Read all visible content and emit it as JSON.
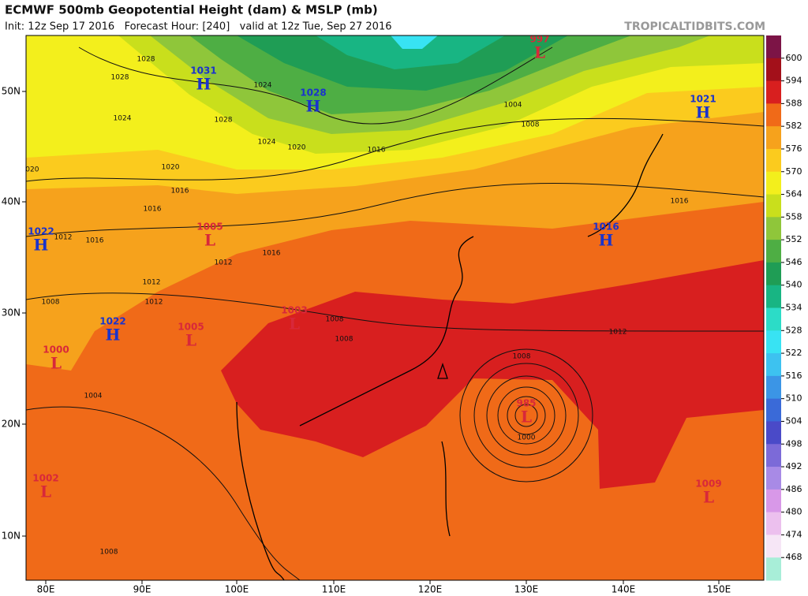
{
  "header": {
    "title": "ECMWF 500mb Geopotential Height (dam) & MSLP (mb)",
    "subtitle": "Init: 12z Sep 17 2016   Forecast Hour: [240]   valid at 12z Tue, Sep 27 2016",
    "site": "TROPICALTIDBITS.COM"
  },
  "lat_labels": [
    "50N",
    "40N",
    "30N",
    "20N",
    "10N"
  ],
  "lon_labels": [
    "80E",
    "90E",
    "100E",
    "110E",
    "120E",
    "130E",
    "140E",
    "150E"
  ],
  "colorbar": {
    "labels": [
      600,
      594,
      588,
      582,
      576,
      570,
      564,
      558,
      552,
      546,
      540,
      534,
      528,
      522,
      516,
      510,
      504,
      498,
      492,
      486,
      480,
      474,
      468
    ],
    "colors": [
      "#7c1446",
      "#a3101a",
      "#d81f1f",
      "#f06a18",
      "#f6a21c",
      "#fbcb1e",
      "#f3ef1c",
      "#c9df1c",
      "#8fc63a",
      "#4eae44",
      "#1f9d55",
      "#18b583",
      "#2cdcc7",
      "#38e3f3",
      "#3dc2f0",
      "#3b95e6",
      "#3a6ad8",
      "#4a4ac8",
      "#7c6ad8",
      "#a88ae6",
      "#d898e8",
      "#ecc0ee",
      "#f6e6f6",
      "#a8eed8"
    ]
  },
  "pressure_centers": [
    {
      "letter": "H",
      "value": "1031"
    },
    {
      "letter": "H",
      "value": "1028"
    },
    {
      "letter": "H",
      "value": "1021"
    },
    {
      "letter": "H",
      "value": "1022"
    },
    {
      "letter": "H",
      "value": "1022"
    },
    {
      "letter": "H",
      "value": "1016"
    },
    {
      "letter": "L",
      "value": "997"
    },
    {
      "letter": "L",
      "value": "1005"
    },
    {
      "letter": "L",
      "value": "1003"
    },
    {
      "letter": "L",
      "value": "1000"
    },
    {
      "letter": "L",
      "value": "1005"
    },
    {
      "letter": "L",
      "value": "985"
    },
    {
      "letter": "L",
      "value": "1002"
    },
    {
      "letter": "L",
      "value": "1009"
    }
  ],
  "contour_labels": [
    "1028",
    "1028",
    "1024",
    "1024",
    "1028",
    "1024",
    "1020",
    "1020",
    "1020",
    "1016",
    "1016",
    "1012",
    "1016",
    "1016",
    "1012",
    "1012",
    "1012",
    "1008",
    "1008",
    "1008",
    "1016",
    "1008",
    "1004",
    "1016",
    "1012",
    "1008",
    "1000",
    "1004",
    "1008"
  ]
}
